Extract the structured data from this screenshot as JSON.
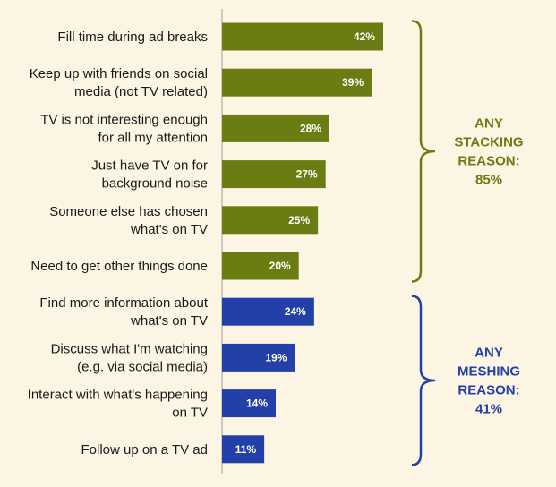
{
  "chart_data": {
    "type": "bar",
    "orientation": "horizontal",
    "categories": [
      [
        "Fill time during ad breaks"
      ],
      [
        "Keep up with friends on social",
        "media (not TV related)"
      ],
      [
        "TV is not interesting enough",
        "for all my attention"
      ],
      [
        "Just have TV on for",
        "background noise"
      ],
      [
        "Someone else has chosen",
        "what's on TV"
      ],
      [
        "Need to get other things done"
      ],
      [
        "Find more information about",
        "what's on TV"
      ],
      [
        "Discuss what I'm watching",
        "(e.g. via social media)"
      ],
      [
        "Interact with what's happening",
        "on TV"
      ],
      [
        "Follow up on a TV ad"
      ]
    ],
    "values": [
      42,
      39,
      28,
      27,
      25,
      20,
      24,
      19,
      14,
      11
    ],
    "value_labels": [
      "42%",
      "39%",
      "28%",
      "27%",
      "25%",
      "20%",
      "24%",
      "19%",
      "14%",
      "11%"
    ],
    "groups": [
      {
        "lines": [
          "ANY",
          "STACKING",
          "REASON:",
          "85%"
        ],
        "color": "#6b7d12",
        "start": 0,
        "end": 5
      },
      {
        "lines": [
          "ANY",
          "MESHING",
          "REASON:",
          "41%"
        ],
        "color": "#2340a8",
        "start": 6,
        "end": 9
      }
    ],
    "xlim": [
      0,
      45
    ],
    "grid": false,
    "colors": {
      "stacking": "#6b7d12",
      "meshing": "#2340a8"
    }
  }
}
